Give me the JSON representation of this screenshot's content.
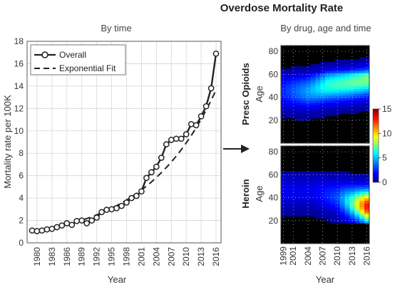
{
  "figure": {
    "title": "Overdose Mortality Rate",
    "left_subtitle": "By time",
    "right_subtitle": "By drug, age and time"
  },
  "chart_data": [
    {
      "type": "line",
      "x": [
        1979,
        1980,
        1981,
        1982,
        1983,
        1984,
        1985,
        1986,
        1987,
        1988,
        1989,
        1990,
        1991,
        1992,
        1993,
        1994,
        1995,
        1996,
        1997,
        1998,
        1999,
        2000,
        2001,
        2002,
        2003,
        2004,
        2005,
        2006,
        2007,
        2008,
        2009,
        2010,
        2011,
        2012,
        2013,
        2014,
        2015,
        2016
      ],
      "series": [
        {
          "name": "Overall",
          "style": "solid-with-markers",
          "color": "#222222",
          "values": [
            1.1,
            1.05,
            1.1,
            1.2,
            1.25,
            1.4,
            1.55,
            1.75,
            1.6,
            1.95,
            2.0,
            1.75,
            2.0,
            2.25,
            2.75,
            2.95,
            3.0,
            3.1,
            3.3,
            3.6,
            4.0,
            4.2,
            4.6,
            5.8,
            6.3,
            6.8,
            7.6,
            8.8,
            9.2,
            9.3,
            9.3,
            9.7,
            10.6,
            10.5,
            11.3,
            12.2,
            13.8,
            16.9
          ]
        },
        {
          "name": "Exponential Fit",
          "style": "dashed",
          "color": "#222222",
          "values": [
            1.0,
            1.07,
            1.15,
            1.23,
            1.32,
            1.42,
            1.52,
            1.63,
            1.75,
            1.88,
            2.02,
            2.17,
            2.33,
            2.5,
            2.68,
            2.88,
            3.09,
            3.32,
            3.56,
            3.82,
            4.1,
            4.4,
            4.72,
            5.07,
            5.44,
            5.84,
            6.27,
            6.73,
            7.22,
            7.75,
            8.32,
            8.93,
            9.58,
            10.28,
            11.04,
            11.85,
            12.72,
            13.65
          ]
        }
      ],
      "title": "By time",
      "xlabel": "Year",
      "ylabel": "Mortality rate per 100K",
      "xlim": [
        1978,
        2017
      ],
      "ylim": [
        0,
        18
      ],
      "xticks": [
        1980,
        1983,
        1986,
        1989,
        1992,
        1995,
        1998,
        2001,
        2004,
        2007,
        2010,
        2013,
        2016
      ],
      "yticks": [
        0,
        2,
        4,
        6,
        8,
        10,
        12,
        14,
        16,
        18
      ],
      "grid": true,
      "legend": "top-left"
    },
    {
      "type": "heatmap",
      "title": "Presc Opioids",
      "xlabel": "Year",
      "ylabel": "Age",
      "xlim": [
        1999,
        2016
      ],
      "ylim": [
        0,
        85
      ],
      "xticks": [
        1999,
        2001,
        2004,
        2007,
        2010,
        2013,
        2016
      ],
      "yticks": [
        20,
        40,
        60,
        80
      ],
      "colorscale": [
        "#00008f",
        "#0000ff",
        "#00a0ff",
        "#00ffff",
        "#80ff80",
        "#ffff00",
        "#ff8000",
        "#ff0000",
        "#800000"
      ],
      "clim": [
        0,
        15
      ],
      "peak_age_by_year": {
        "1999": 45,
        "2004": 45,
        "2008": 50,
        "2012": 52,
        "2016": 55
      },
      "peak_value_by_year": {
        "1999": 2.5,
        "2004": 4.5,
        "2008": 6.5,
        "2012": 7,
        "2016": 7.5
      }
    },
    {
      "type": "heatmap",
      "title": "Heroin",
      "xlabel": "Year",
      "ylabel": "Age",
      "xlim": [
        1999,
        2016
      ],
      "ylim": [
        0,
        85
      ],
      "xticks": [
        1999,
        2001,
        2004,
        2007,
        2010,
        2013,
        2016
      ],
      "yticks": [
        20,
        40,
        60,
        80
      ],
      "clim": [
        0,
        15
      ],
      "peak_age_by_year": {
        "1999": 45,
        "2005": 45,
        "2010": 40,
        "2013": 35,
        "2016": 32
      },
      "peak_value_by_year": {
        "1999": 1.5,
        "2005": 1.5,
        "2010": 3,
        "2013": 7,
        "2016": 13
      }
    }
  ],
  "colorbar": {
    "ticks": [
      0,
      5,
      10,
      15
    ],
    "labels": [
      "0",
      "5",
      "10",
      "15"
    ]
  }
}
